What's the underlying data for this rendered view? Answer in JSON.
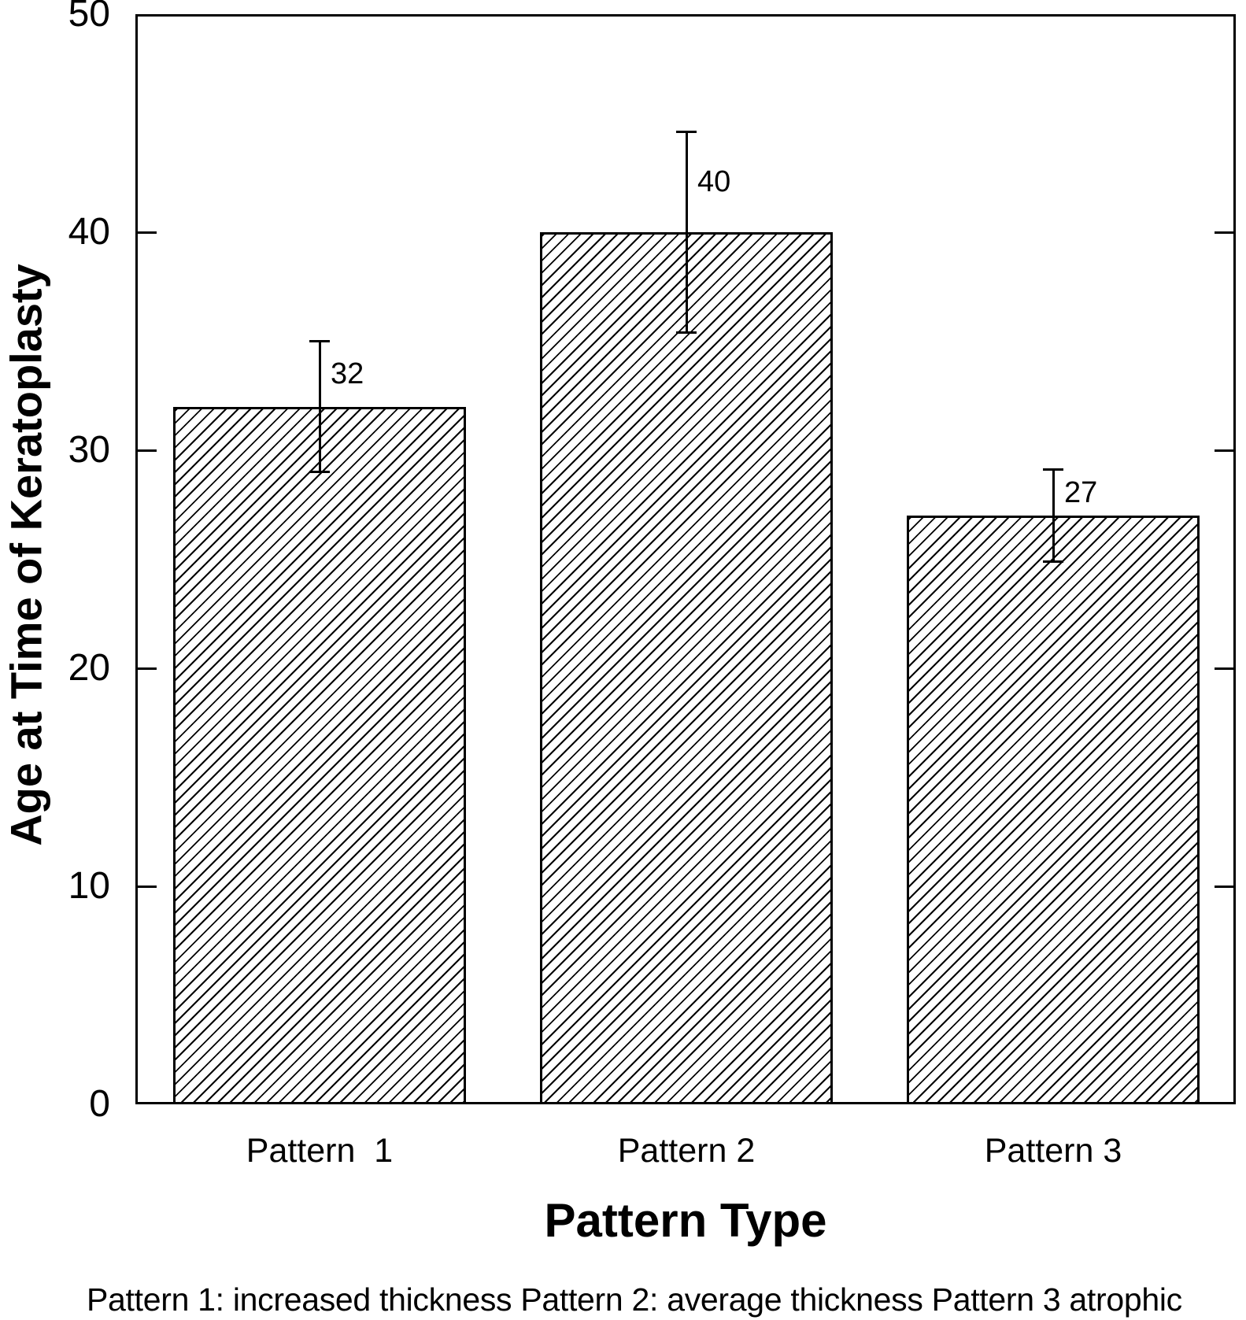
{
  "chart_data": {
    "type": "bar",
    "title": "",
    "xlabel": "Pattern Type",
    "ylabel": "Age at Time of Keratoplasty",
    "categories": [
      "Pattern  1",
      "Pattern 2",
      "Pattern 3"
    ],
    "values": [
      32,
      40,
      27
    ],
    "errors": [
      3.0,
      4.6,
      2.1
    ],
    "bar_value_labels": [
      "32",
      "40",
      "27"
    ],
    "ylim": [
      0,
      50
    ],
    "ytick_values": [
      0,
      10,
      20,
      30,
      40,
      50
    ],
    "ytick_labels": [
      "0",
      "10",
      "20",
      "30",
      "40",
      "50"
    ],
    "grid": false,
    "legend": "none",
    "bar_fill": "hatch-diagonal",
    "bar_color": "#000000",
    "background_color": "#ffffff",
    "footnote": "Pattern 1: increased thickness Pattern 2: average thickness Pattern 3 atrophic"
  }
}
